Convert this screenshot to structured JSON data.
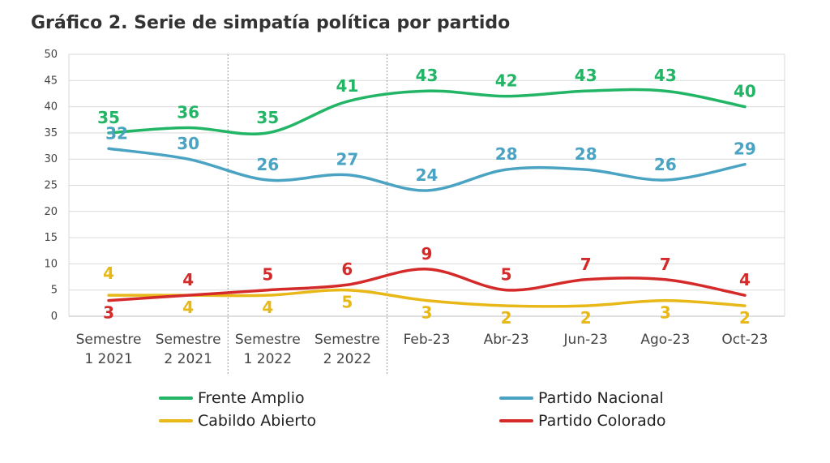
{
  "chart_data": {
    "type": "line",
    "title": "Gráfico 2. Serie de simpatía política por partido",
    "categories": [
      [
        "Semestre",
        "1 2021"
      ],
      [
        "Semestre",
        "2 2021"
      ],
      [
        "Semestre",
        "1 2022"
      ],
      [
        "Semestre",
        "2 2022"
      ],
      [
        "Feb-23"
      ],
      [
        "Abr-23"
      ],
      [
        "Jun-23"
      ],
      [
        "Ago-23"
      ],
      [
        "Oct-23"
      ]
    ],
    "ylim": [
      0,
      50
    ],
    "yticks": [
      0,
      5,
      10,
      15,
      20,
      25,
      30,
      35,
      40,
      45,
      50
    ],
    "grid": true,
    "legend_position": "bottom",
    "series": [
      {
        "name": "Frente Amplio",
        "color": "#22b565",
        "values": [
          35,
          36,
          35,
          41,
          43,
          42,
          43,
          43,
          40
        ]
      },
      {
        "name": "Partido Nacional",
        "color": "#4aa3c2",
        "values": [
          32,
          30,
          26,
          27,
          24,
          28,
          28,
          26,
          29
        ]
      },
      {
        "name": "Cabildo Abierto",
        "color": "#e8b818",
        "values": [
          4,
          4,
          4,
          5,
          3,
          2,
          2,
          3,
          2
        ]
      },
      {
        "name": "Partido Colorado",
        "color": "#d42a2a",
        "values": [
          3,
          4,
          5,
          6,
          9,
          5,
          7,
          7,
          4
        ]
      }
    ]
  }
}
